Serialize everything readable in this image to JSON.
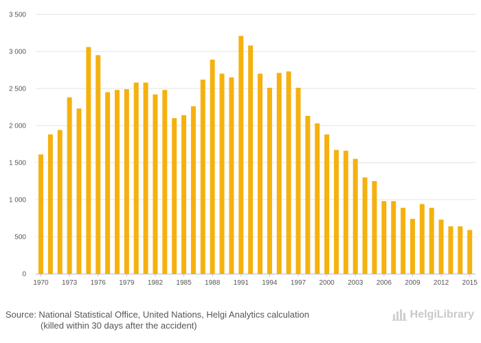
{
  "chart_data": {
    "type": "bar",
    "title": "",
    "xlabel": "",
    "ylabel": "",
    "ylim": [
      0,
      3500
    ],
    "yticks": [
      0,
      500,
      1000,
      1500,
      2000,
      2500,
      3000,
      3500
    ],
    "ytick_labels": [
      "0",
      "500",
      "1 000",
      "1 500",
      "2 000",
      "2 500",
      "3 000",
      "3 500"
    ],
    "categories": [
      "1970",
      "1971",
      "1972",
      "1973",
      "1974",
      "1975",
      "1976",
      "1977",
      "1978",
      "1979",
      "1980",
      "1981",
      "1982",
      "1983",
      "1984",
      "1985",
      "1986",
      "1987",
      "1988",
      "1989",
      "1990",
      "1991",
      "1992",
      "1993",
      "1994",
      "1995",
      "1996",
      "1997",
      "1998",
      "1999",
      "2000",
      "2001",
      "2002",
      "2003",
      "2004",
      "2005",
      "2006",
      "2007",
      "2008",
      "2009",
      "2010",
      "2011",
      "2012",
      "2013",
      "2014",
      "2015"
    ],
    "xtick_labels": [
      "1970",
      "1973",
      "1976",
      "1979",
      "1982",
      "1985",
      "1988",
      "1991",
      "1994",
      "1997",
      "2000",
      "2003",
      "2006",
      "2009",
      "2012",
      "2015"
    ],
    "values": [
      1610,
      1880,
      1940,
      2380,
      2230,
      3060,
      2950,
      2450,
      2480,
      2490,
      2580,
      2580,
      2420,
      2480,
      2100,
      2140,
      2260,
      2620,
      2890,
      2700,
      2650,
      3210,
      3080,
      2700,
      2510,
      2710,
      2730,
      2510,
      2130,
      2030,
      1880,
      1670,
      1660,
      1550,
      1300,
      1250,
      980,
      980,
      890,
      740,
      940,
      890,
      730,
      640,
      640,
      590
    ],
    "color": "#f5b10f"
  },
  "footer": {
    "source": "Source: National Statistical Office, United Nations, Helgi Analytics calculation",
    "note": "(killed within 30 days after the accident)"
  },
  "brand": {
    "name": "HelgiLibrary",
    "logo_icon": "bars-logo-icon"
  }
}
